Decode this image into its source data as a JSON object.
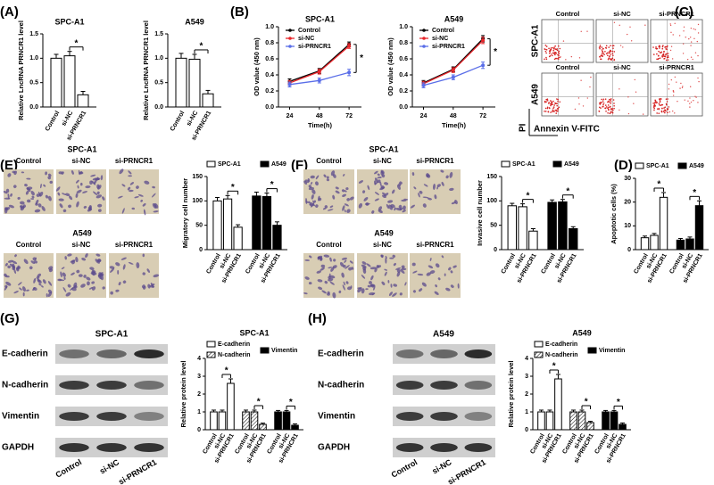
{
  "panel_labels": [
    "(A)",
    "(B)",
    "(C)",
    "(D)",
    "(E)",
    "(F)",
    "(G)",
    "(H)"
  ],
  "flow_cytometry": {
    "columns": [
      "Control",
      "si-NC",
      "si-PRNCR1"
    ],
    "rows": [
      "SPC-A1",
      "A549"
    ],
    "x_label": "Annexin V-FITC",
    "y_label": "PI"
  },
  "migration_images": {
    "rows": [
      "SPC-A1",
      "A549"
    ],
    "columns": [
      "Control",
      "si-NC",
      "si-PRNCR1"
    ]
  },
  "invasion_images": {
    "rows": [
      "SPC-A1",
      "A549"
    ],
    "columns": [
      "Control",
      "si-NC",
      "si-PRNCR1"
    ]
  },
  "western_blot_G": {
    "title": "SPC-A1",
    "rows": [
      "E-cadherin",
      "N-cadherin",
      "Vimentin",
      "GAPDH"
    ],
    "columns": [
      "Control",
      "si-NC",
      "si-PRNCR1"
    ]
  },
  "western_blot_H": {
    "title": "A549",
    "rows": [
      "E-cadherin",
      "N-cadherin",
      "Vimentin",
      "GAPDH"
    ],
    "columns": [
      "Control",
      "si-NC",
      "si-PRNCR1"
    ]
  },
  "chart_data": [
    {
      "type": "bar",
      "title": "SPC-A1",
      "y_label": "Relative LncRNA PRNCR1 level",
      "categories": [
        "Control",
        "si-NC",
        "si-PRNCR1"
      ],
      "series": [
        {
          "color": "#ffffff",
          "values": [
            1.0,
            1.05,
            0.25
          ],
          "errors": [
            0.08,
            0.09,
            0.07
          ]
        }
      ],
      "ylim": [
        0,
        1.5
      ],
      "yticks": [
        {
          "value": 0,
          "label": "0.0"
        },
        0.5,
        {
          "value": 1,
          "label": "1.0"
        },
        1.5
      ],
      "significance": [
        "*"
      ]
    },
    {
      "type": "bar",
      "title": "A549",
      "y_label": "Relative LncRNA PRNCR1 level",
      "categories": [
        "Control",
        "si-NC",
        "si-PRNCR1"
      ],
      "series": [
        {
          "color": "#ffffff",
          "values": [
            1.0,
            0.98,
            0.27
          ],
          "errors": [
            0.1,
            0.1,
            0.07
          ]
        }
      ],
      "ylim": [
        0,
        1.5
      ],
      "yticks": [
        {
          "value": 0,
          "label": "0.0"
        },
        0.5,
        {
          "value": 1,
          "label": "1.0"
        },
        1.5
      ],
      "significance": [
        "*"
      ]
    },
    {
      "type": "line",
      "title": "SPC-A1",
      "x_label": "Time(h)",
      "y_label": "OD value (450 nm)",
      "x": [
        24,
        48,
        72
      ],
      "xlim": [
        15,
        82
      ],
      "xticks": [
        24,
        48,
        72
      ],
      "ylim": [
        0,
        1
      ],
      "yticks": [
        {
          "value": 0,
          "label": "0.0"
        },
        0.2,
        0.4,
        0.6,
        0.8,
        {
          "value": 1,
          "label": "1.0"
        }
      ],
      "series": [
        {
          "name": "Control",
          "color": "#000000",
          "values": [
            0.32,
            0.45,
            0.78
          ],
          "errors": [
            0.03,
            0.03,
            0.03
          ]
        },
        {
          "name": "si-NC",
          "color": "#e8262b",
          "values": [
            0.3,
            0.44,
            0.76
          ],
          "errors": [
            0.03,
            0.03,
            0.03
          ]
        },
        {
          "name": "si-PRNCR1",
          "color": "#5a6ee8",
          "values": [
            0.28,
            0.33,
            0.43
          ],
          "errors": [
            0.03,
            0.03,
            0.04
          ]
        }
      ],
      "significance": [
        "*"
      ]
    },
    {
      "type": "line",
      "title": "A549",
      "x_label": "Time(h)",
      "y_label": "OD value (450 nm)",
      "x": [
        24,
        48,
        72
      ],
      "xlim": [
        15,
        82
      ],
      "xticks": [
        24,
        48,
        72
      ],
      "ylim": [
        0,
        1
      ],
      "yticks": [
        {
          "value": 0,
          "label": "0.0"
        },
        0.2,
        0.4,
        0.6,
        0.8,
        {
          "value": 1,
          "label": "1.0"
        }
      ],
      "series": [
        {
          "name": "Control",
          "color": "#000000",
          "values": [
            0.3,
            0.47,
            0.85
          ],
          "errors": [
            0.03,
            0.03,
            0.04
          ]
        },
        {
          "name": "si-NC",
          "color": "#e8262b",
          "values": [
            0.29,
            0.46,
            0.83
          ],
          "errors": [
            0.03,
            0.03,
            0.04
          ]
        },
        {
          "name": "si-PRNCR1",
          "color": "#5a6ee8",
          "values": [
            0.27,
            0.37,
            0.52
          ],
          "errors": [
            0.03,
            0.03,
            0.04
          ]
        }
      ],
      "significance": [
        "*"
      ]
    },
    {
      "type": "bar",
      "y_label": "Migratory cell number",
      "categories": [
        "Control",
        "si-NC",
        "si-PRNCR1"
      ],
      "series": [
        {
          "name": "SPC-A1",
          "color": "#ffffff",
          "values": [
            100,
            104,
            46
          ],
          "errors": [
            7,
            7,
            5
          ]
        },
        {
          "name": "A549",
          "color": "#000000",
          "values": [
            110,
            109,
            50
          ],
          "errors": [
            8,
            7,
            7
          ]
        }
      ],
      "ylim": [
        0,
        150
      ],
      "yticks": [
        0,
        50,
        100,
        150
      ],
      "significance": [
        "*",
        "*"
      ]
    },
    {
      "type": "bar",
      "y_label": "Invasive cell number",
      "categories": [
        "Control",
        "si-NC",
        "si-PRNCR1"
      ],
      "series": [
        {
          "name": "SPC-A1",
          "color": "#ffffff",
          "values": [
            90,
            88,
            38
          ],
          "errors": [
            5,
            6,
            5
          ]
        },
        {
          "name": "A549",
          "color": "#000000",
          "values": [
            97,
            98,
            43
          ],
          "errors": [
            5,
            5,
            4
          ]
        }
      ],
      "ylim": [
        0,
        150
      ],
      "yticks": [
        0,
        50,
        100,
        150
      ],
      "significance": [
        "*",
        "*"
      ]
    },
    {
      "type": "bar",
      "y_label": "Apoptotic cells (%)",
      "categories": [
        "Control",
        "si-NC",
        "si-PRNCR1"
      ],
      "series": [
        {
          "name": "SPC-A1",
          "color": "#ffffff",
          "values": [
            5,
            6,
            22
          ],
          "errors": [
            0.7,
            0.8,
            2
          ]
        },
        {
          "name": "A549",
          "color": "#000000",
          "values": [
            4,
            4.5,
            18.5
          ],
          "errors": [
            0.7,
            0.8,
            2
          ]
        }
      ],
      "ylim": [
        0,
        30
      ],
      "yticks": [
        0,
        10,
        20,
        30
      ],
      "significance": [
        "*",
        "*"
      ]
    },
    {
      "type": "bar",
      "title": "SPC-A1",
      "y_label": "Relative protein level",
      "categories": [
        "Control",
        "si-NC",
        "si-PRNCR1"
      ],
      "series": [
        {
          "name": "E-cadherin",
          "color": "#ffffff",
          "values": [
            1,
            1,
            2.6
          ],
          "errors": [
            0.1,
            0.1,
            0.25
          ]
        },
        {
          "name": "N-cadherin",
          "color": "#ffffff",
          "pattern": "hatch",
          "values": [
            1,
            1,
            0.3
          ],
          "errors": [
            0.1,
            0.1,
            0.07
          ]
        },
        {
          "name": "Vimentin",
          "color": "#000000",
          "values": [
            1,
            1,
            0.25
          ],
          "errors": [
            0.08,
            0.08,
            0.08
          ]
        }
      ],
      "ylim": [
        0,
        4
      ],
      "yticks": [
        0,
        1,
        2,
        3,
        4
      ],
      "significance": [
        "*",
        "*",
        "*"
      ]
    },
    {
      "type": "bar",
      "title": "A549",
      "y_label": "Relative protein level",
      "categories": [
        "Control",
        "si-NC",
        "si-PRNCR1"
      ],
      "series": [
        {
          "name": "E-cadherin",
          "color": "#ffffff",
          "values": [
            1,
            1,
            2.85
          ],
          "errors": [
            0.1,
            0.1,
            0.25
          ]
        },
        {
          "name": "N-cadherin",
          "color": "#ffffff",
          "pattern": "hatch",
          "values": [
            1,
            1,
            0.4
          ],
          "errors": [
            0.1,
            0.1,
            0.07
          ]
        },
        {
          "name": "Vimentin",
          "color": "#000000",
          "values": [
            1,
            1,
            0.3
          ],
          "errors": [
            0.08,
            0.08,
            0.08
          ]
        }
      ],
      "ylim": [
        0,
        4
      ],
      "yticks": [
        0,
        1,
        2,
        3,
        4
      ],
      "significance": [
        "*",
        "*",
        "*"
      ]
    }
  ]
}
